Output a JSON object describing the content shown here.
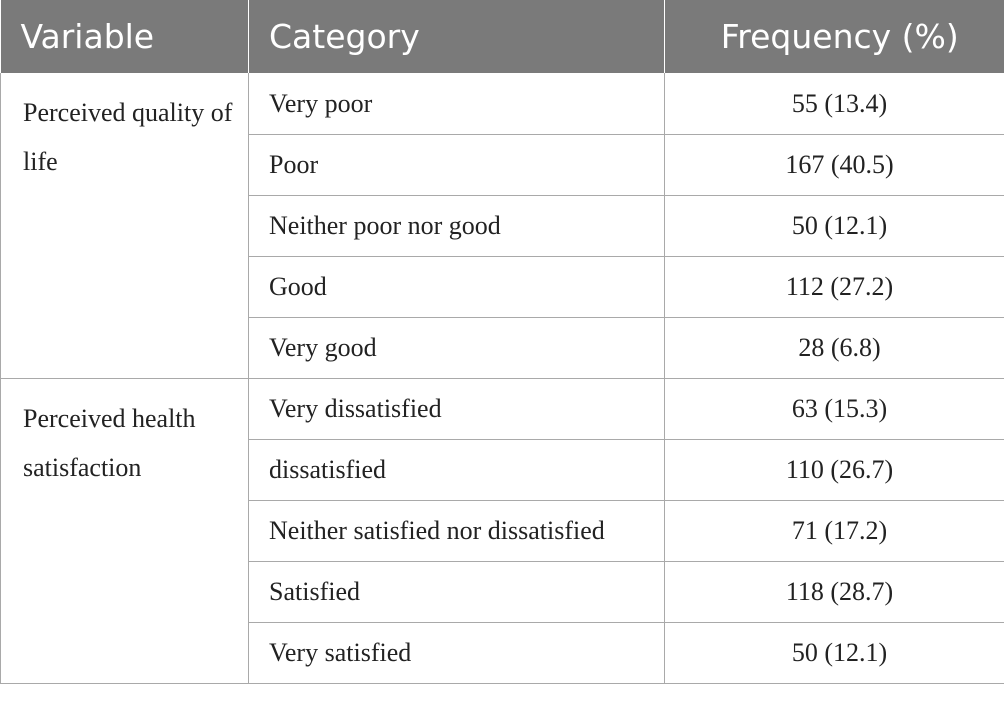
{
  "header": {
    "variable": "Variable",
    "category": "Category",
    "frequency": "Frequency (%)"
  },
  "groups": [
    {
      "variable": "Perceived quality of life",
      "rows": [
        {
          "category": "Very poor",
          "frequency": "55 (13.4)"
        },
        {
          "category": "Poor",
          "frequency": "167 (40.5)"
        },
        {
          "category": "Neither poor nor good",
          "frequency": "50 (12.1)"
        },
        {
          "category": "Good",
          "frequency": "112 (27.2)"
        },
        {
          "category": "Very good",
          "frequency": "28 (6.8)"
        }
      ]
    },
    {
      "variable": "Perceived health satisfaction",
      "rows": [
        {
          "category": "Very dissatisfied",
          "frequency": "63 (15.3)"
        },
        {
          "category": "dissatisfied",
          "frequency": "110 (26.7)"
        },
        {
          "category": "Neither satisfied nor dissatisfied",
          "frequency": "71 (17.2)"
        },
        {
          "category": "Satisfied",
          "frequency": "118 (28.7)"
        },
        {
          "category": "Very satisfied",
          "frequency": "50 (12.1)"
        }
      ]
    }
  ]
}
